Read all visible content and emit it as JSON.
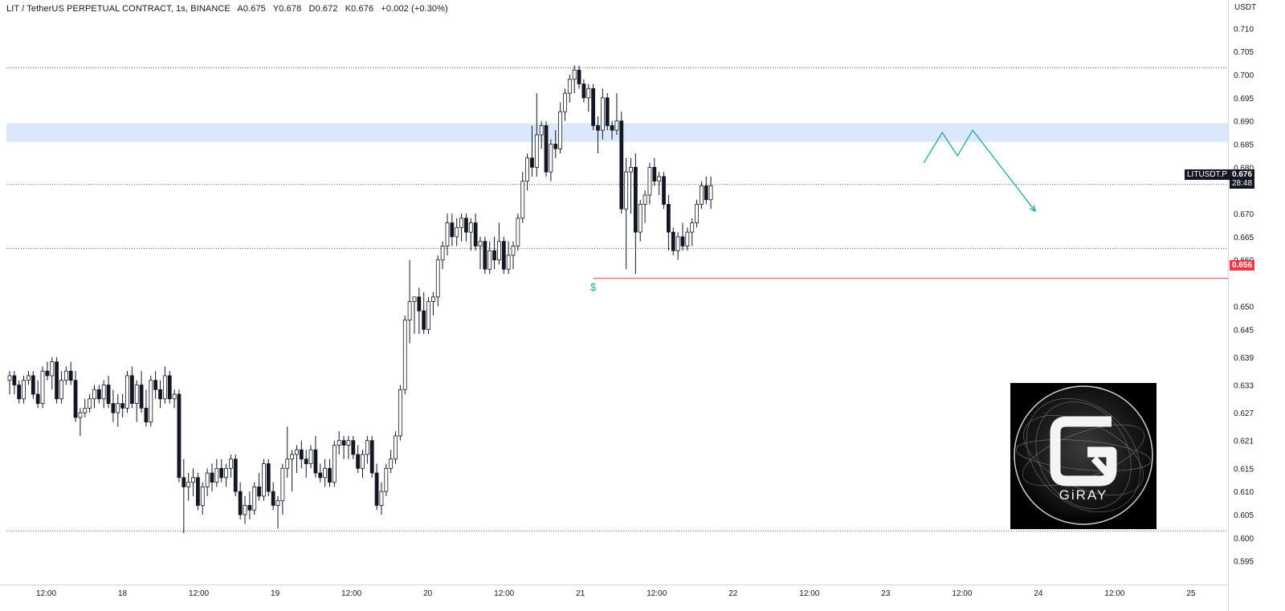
{
  "legend": {
    "symbol": "LIT / TetherUS PERPETUAL CONTRACT, 1s, BINANCE",
    "open": "A0.675",
    "high": "Y0.678",
    "low": "D0.672",
    "close": "K0.676",
    "change": "+0.002 (+0.30%)"
  },
  "price_axis_unit": "USDT",
  "current_price_tag": {
    "symbol": "LITUSDT.P",
    "price": "0.676",
    "countdown": "28:48"
  },
  "support_price_tag": "0.656",
  "annotation": "$",
  "logo_text": "GiRAY",
  "colors": {
    "candle_up_fill": "#ffffff",
    "candle_down_fill": "#131722",
    "candle_outline": "#131722",
    "zone": "#dbe8fb",
    "support_line": "#f23645",
    "projection": "#26a69a",
    "annotation": "#22ab94"
  },
  "chart_data": {
    "type": "candlestick",
    "title": "",
    "x_axis": {
      "labels": [
        "12:00",
        "18",
        "12:00",
        "19",
        "12:00",
        "20",
        "12:00",
        "21",
        "12:00",
        "22",
        "12:00",
        "23",
        "12:00",
        "24",
        "12:00",
        "25"
      ],
      "range_days": [
        17.25,
        25.3
      ]
    },
    "y_axis": {
      "unit": "USDT",
      "labels": [
        "0.710",
        "0.705",
        "0.700",
        "0.695",
        "0.690",
        "0.685",
        "0.680",
        "0.676",
        "0.670",
        "0.665",
        "0.660",
        "0.656",
        "0.650",
        "0.645",
        "0.639",
        "0.633",
        "0.627",
        "0.621",
        "0.615",
        "0.610",
        "0.605",
        "0.600",
        "0.595"
      ],
      "range": [
        0.592,
        0.713
      ]
    },
    "zone": {
      "from": 0.6855,
      "to": 0.6895
    },
    "dotted_levels": [
      0.7015,
      0.6763,
      0.6625,
      0.6015
    ],
    "support_level": 0.656,
    "projection_path": [
      {
        "day": 23.25,
        "price": 0.681
      },
      {
        "day": 23.37,
        "price": 0.6875
      },
      {
        "day": 23.47,
        "price": 0.6825
      },
      {
        "day": 23.57,
        "price": 0.688
      },
      {
        "day": 23.98,
        "price": 0.6705
      }
    ],
    "candles": [
      {
        "o": 0.634,
        "h": 0.636,
        "l": 0.631,
        "c": 0.635
      },
      {
        "o": 0.635,
        "h": 0.636,
        "l": 0.631,
        "c": 0.633
      },
      {
        "o": 0.633,
        "h": 0.634,
        "l": 0.629,
        "c": 0.63
      },
      {
        "o": 0.63,
        "h": 0.635,
        "l": 0.629,
        "c": 0.634
      },
      {
        "o": 0.634,
        "h": 0.636,
        "l": 0.633,
        "c": 0.635
      },
      {
        "o": 0.635,
        "h": 0.636,
        "l": 0.63,
        "c": 0.631
      },
      {
        "o": 0.631,
        "h": 0.634,
        "l": 0.628,
        "c": 0.629
      },
      {
        "o": 0.629,
        "h": 0.637,
        "l": 0.628,
        "c": 0.636
      },
      {
        "o": 0.636,
        "h": 0.638,
        "l": 0.634,
        "c": 0.635
      },
      {
        "o": 0.635,
        "h": 0.639,
        "l": 0.632,
        "c": 0.638
      },
      {
        "o": 0.638,
        "h": 0.639,
        "l": 0.629,
        "c": 0.63
      },
      {
        "o": 0.63,
        "h": 0.636,
        "l": 0.629,
        "c": 0.634
      },
      {
        "o": 0.634,
        "h": 0.637,
        "l": 0.633,
        "c": 0.636
      },
      {
        "o": 0.636,
        "h": 0.638,
        "l": 0.633,
        "c": 0.634
      },
      {
        "o": 0.634,
        "h": 0.636,
        "l": 0.625,
        "c": 0.626
      },
      {
        "o": 0.626,
        "h": 0.628,
        "l": 0.622,
        "c": 0.627
      },
      {
        "o": 0.627,
        "h": 0.63,
        "l": 0.626,
        "c": 0.628
      },
      {
        "o": 0.628,
        "h": 0.631,
        "l": 0.627,
        "c": 0.63
      },
      {
        "o": 0.63,
        "h": 0.633,
        "l": 0.628,
        "c": 0.632
      },
      {
        "o": 0.632,
        "h": 0.633,
        "l": 0.629,
        "c": 0.63
      },
      {
        "o": 0.63,
        "h": 0.634,
        "l": 0.628,
        "c": 0.633
      },
      {
        "o": 0.633,
        "h": 0.635,
        "l": 0.628,
        "c": 0.629
      },
      {
        "o": 0.629,
        "h": 0.632,
        "l": 0.625,
        "c": 0.627
      },
      {
        "o": 0.627,
        "h": 0.631,
        "l": 0.624,
        "c": 0.629
      },
      {
        "o": 0.629,
        "h": 0.631,
        "l": 0.626,
        "c": 0.628
      },
      {
        "o": 0.628,
        "h": 0.636,
        "l": 0.627,
        "c": 0.635
      },
      {
        "o": 0.635,
        "h": 0.637,
        "l": 0.628,
        "c": 0.629
      },
      {
        "o": 0.629,
        "h": 0.634,
        "l": 0.625,
        "c": 0.633
      },
      {
        "o": 0.633,
        "h": 0.636,
        "l": 0.627,
        "c": 0.628
      },
      {
        "o": 0.628,
        "h": 0.632,
        "l": 0.624,
        "c": 0.625
      },
      {
        "o": 0.625,
        "h": 0.635,
        "l": 0.624,
        "c": 0.634
      },
      {
        "o": 0.634,
        "h": 0.636,
        "l": 0.63,
        "c": 0.632
      },
      {
        "o": 0.632,
        "h": 0.634,
        "l": 0.628,
        "c": 0.63
      },
      {
        "o": 0.63,
        "h": 0.637,
        "l": 0.629,
        "c": 0.635
      },
      {
        "o": 0.635,
        "h": 0.636,
        "l": 0.629,
        "c": 0.63
      },
      {
        "o": 0.63,
        "h": 0.632,
        "l": 0.628,
        "c": 0.631
      },
      {
        "o": 0.631,
        "h": 0.632,
        "l": 0.612,
        "c": 0.613
      },
      {
        "o": 0.613,
        "h": 0.617,
        "l": 0.601,
        "c": 0.611
      },
      {
        "o": 0.611,
        "h": 0.614,
        "l": 0.608,
        "c": 0.612
      },
      {
        "o": 0.612,
        "h": 0.615,
        "l": 0.609,
        "c": 0.613
      },
      {
        "o": 0.613,
        "h": 0.614,
        "l": 0.606,
        "c": 0.607
      },
      {
        "o": 0.607,
        "h": 0.612,
        "l": 0.605,
        "c": 0.611
      },
      {
        "o": 0.611,
        "h": 0.615,
        "l": 0.609,
        "c": 0.614
      },
      {
        "o": 0.614,
        "h": 0.616,
        "l": 0.61,
        "c": 0.612
      },
      {
        "o": 0.612,
        "h": 0.617,
        "l": 0.611,
        "c": 0.615
      },
      {
        "o": 0.615,
        "h": 0.617,
        "l": 0.612,
        "c": 0.613
      },
      {
        "o": 0.613,
        "h": 0.616,
        "l": 0.611,
        "c": 0.615
      },
      {
        "o": 0.615,
        "h": 0.618,
        "l": 0.613,
        "c": 0.617
      },
      {
        "o": 0.617,
        "h": 0.618,
        "l": 0.609,
        "c": 0.61
      },
      {
        "o": 0.61,
        "h": 0.612,
        "l": 0.604,
        "c": 0.605
      },
      {
        "o": 0.605,
        "h": 0.609,
        "l": 0.603,
        "c": 0.607
      },
      {
        "o": 0.607,
        "h": 0.61,
        "l": 0.604,
        "c": 0.606
      },
      {
        "o": 0.606,
        "h": 0.612,
        "l": 0.605,
        "c": 0.611
      },
      {
        "o": 0.611,
        "h": 0.614,
        "l": 0.608,
        "c": 0.609
      },
      {
        "o": 0.609,
        "h": 0.617,
        "l": 0.608,
        "c": 0.616
      },
      {
        "o": 0.616,
        "h": 0.617,
        "l": 0.609,
        "c": 0.61
      },
      {
        "o": 0.61,
        "h": 0.612,
        "l": 0.606,
        "c": 0.607
      },
      {
        "o": 0.607,
        "h": 0.609,
        "l": 0.602,
        "c": 0.608
      },
      {
        "o": 0.608,
        "h": 0.616,
        "l": 0.605,
        "c": 0.615
      },
      {
        "o": 0.615,
        "h": 0.624,
        "l": 0.613,
        "c": 0.617
      },
      {
        "o": 0.617,
        "h": 0.619,
        "l": 0.61,
        "c": 0.618
      },
      {
        "o": 0.618,
        "h": 0.62,
        "l": 0.614,
        "c": 0.619
      },
      {
        "o": 0.619,
        "h": 0.621,
        "l": 0.615,
        "c": 0.617
      },
      {
        "o": 0.617,
        "h": 0.619,
        "l": 0.613,
        "c": 0.616
      },
      {
        "o": 0.616,
        "h": 0.62,
        "l": 0.615,
        "c": 0.619
      },
      {
        "o": 0.619,
        "h": 0.622,
        "l": 0.613,
        "c": 0.614
      },
      {
        "o": 0.614,
        "h": 0.616,
        "l": 0.612,
        "c": 0.613
      },
      {
        "o": 0.613,
        "h": 0.617,
        "l": 0.611,
        "c": 0.615
      },
      {
        "o": 0.615,
        "h": 0.617,
        "l": 0.611,
        "c": 0.612
      },
      {
        "o": 0.612,
        "h": 0.621,
        "l": 0.611,
        "c": 0.62
      },
      {
        "o": 0.62,
        "h": 0.623,
        "l": 0.618,
        "c": 0.621
      },
      {
        "o": 0.621,
        "h": 0.622,
        "l": 0.617,
        "c": 0.62
      },
      {
        "o": 0.62,
        "h": 0.622,
        "l": 0.617,
        "c": 0.621
      },
      {
        "o": 0.621,
        "h": 0.622,
        "l": 0.617,
        "c": 0.618
      },
      {
        "o": 0.618,
        "h": 0.62,
        "l": 0.614,
        "c": 0.615
      },
      {
        "o": 0.615,
        "h": 0.619,
        "l": 0.613,
        "c": 0.618
      },
      {
        "o": 0.618,
        "h": 0.622,
        "l": 0.616,
        "c": 0.621
      },
      {
        "o": 0.621,
        "h": 0.622,
        "l": 0.613,
        "c": 0.614
      },
      {
        "o": 0.614,
        "h": 0.616,
        "l": 0.606,
        "c": 0.607
      },
      {
        "o": 0.607,
        "h": 0.612,
        "l": 0.605,
        "c": 0.61
      },
      {
        "o": 0.61,
        "h": 0.616,
        "l": 0.609,
        "c": 0.615
      },
      {
        "o": 0.615,
        "h": 0.619,
        "l": 0.614,
        "c": 0.617
      },
      {
        "o": 0.617,
        "h": 0.623,
        "l": 0.616,
        "c": 0.622
      },
      {
        "o": 0.622,
        "h": 0.633,
        "l": 0.621,
        "c": 0.632
      },
      {
        "o": 0.632,
        "h": 0.648,
        "l": 0.631,
        "c": 0.647
      },
      {
        "o": 0.647,
        "h": 0.66,
        "l": 0.642,
        "c": 0.651
      },
      {
        "o": 0.651,
        "h": 0.652,
        "l": 0.644,
        "c": 0.652
      },
      {
        "o": 0.652,
        "h": 0.654,
        "l": 0.644,
        "c": 0.649
      },
      {
        "o": 0.649,
        "h": 0.653,
        "l": 0.644,
        "c": 0.645
      },
      {
        "o": 0.645,
        "h": 0.652,
        "l": 0.644,
        "c": 0.651
      },
      {
        "o": 0.651,
        "h": 0.653,
        "l": 0.648,
        "c": 0.652
      },
      {
        "o": 0.652,
        "h": 0.661,
        "l": 0.65,
        "c": 0.66
      },
      {
        "o": 0.66,
        "h": 0.664,
        "l": 0.658,
        "c": 0.663
      },
      {
        "o": 0.663,
        "h": 0.67,
        "l": 0.661,
        "c": 0.668
      },
      {
        "o": 0.668,
        "h": 0.67,
        "l": 0.663,
        "c": 0.665
      },
      {
        "o": 0.665,
        "h": 0.669,
        "l": 0.663,
        "c": 0.667
      },
      {
        "o": 0.667,
        "h": 0.67,
        "l": 0.664,
        "c": 0.669
      },
      {
        "o": 0.669,
        "h": 0.67,
        "l": 0.664,
        "c": 0.666
      },
      {
        "o": 0.666,
        "h": 0.669,
        "l": 0.662,
        "c": 0.668
      },
      {
        "o": 0.668,
        "h": 0.67,
        "l": 0.662,
        "c": 0.663
      },
      {
        "o": 0.663,
        "h": 0.665,
        "l": 0.658,
        "c": 0.664
      },
      {
        "o": 0.664,
        "h": 0.665,
        "l": 0.657,
        "c": 0.658
      },
      {
        "o": 0.658,
        "h": 0.664,
        "l": 0.657,
        "c": 0.662
      },
      {
        "o": 0.662,
        "h": 0.665,
        "l": 0.658,
        "c": 0.66
      },
      {
        "o": 0.66,
        "h": 0.668,
        "l": 0.659,
        "c": 0.664
      },
      {
        "o": 0.664,
        "h": 0.665,
        "l": 0.657,
        "c": 0.658
      },
      {
        "o": 0.658,
        "h": 0.664,
        "l": 0.657,
        "c": 0.661
      },
      {
        "o": 0.661,
        "h": 0.664,
        "l": 0.658,
        "c": 0.663
      },
      {
        "o": 0.663,
        "h": 0.67,
        "l": 0.662,
        "c": 0.669
      },
      {
        "o": 0.669,
        "h": 0.679,
        "l": 0.668,
        "c": 0.677
      },
      {
        "o": 0.677,
        "h": 0.683,
        "l": 0.675,
        "c": 0.682
      },
      {
        "o": 0.682,
        "h": 0.689,
        "l": 0.678,
        "c": 0.68
      },
      {
        "o": 0.68,
        "h": 0.696,
        "l": 0.678,
        "c": 0.687
      },
      {
        "o": 0.687,
        "h": 0.69,
        "l": 0.684,
        "c": 0.689
      },
      {
        "o": 0.689,
        "h": 0.69,
        "l": 0.678,
        "c": 0.679
      },
      {
        "o": 0.679,
        "h": 0.686,
        "l": 0.677,
        "c": 0.685
      },
      {
        "o": 0.685,
        "h": 0.688,
        "l": 0.682,
        "c": 0.684
      },
      {
        "o": 0.684,
        "h": 0.694,
        "l": 0.683,
        "c": 0.692
      },
      {
        "o": 0.692,
        "h": 0.697,
        "l": 0.69,
        "c": 0.696
      },
      {
        "o": 0.696,
        "h": 0.7,
        "l": 0.694,
        "c": 0.699
      },
      {
        "o": 0.699,
        "h": 0.702,
        "l": 0.696,
        "c": 0.701
      },
      {
        "o": 0.701,
        "h": 0.702,
        "l": 0.697,
        "c": 0.698
      },
      {
        "o": 0.698,
        "h": 0.699,
        "l": 0.694,
        "c": 0.695
      },
      {
        "o": 0.695,
        "h": 0.698,
        "l": 0.692,
        "c": 0.697
      },
      {
        "o": 0.697,
        "h": 0.698,
        "l": 0.688,
        "c": 0.689
      },
      {
        "o": 0.689,
        "h": 0.691,
        "l": 0.683,
        "c": 0.688
      },
      {
        "o": 0.688,
        "h": 0.697,
        "l": 0.686,
        "c": 0.695
      },
      {
        "o": 0.695,
        "h": 0.696,
        "l": 0.688,
        "c": 0.689
      },
      {
        "o": 0.689,
        "h": 0.69,
        "l": 0.686,
        "c": 0.688
      },
      {
        "o": 0.688,
        "h": 0.696,
        "l": 0.687,
        "c": 0.69
      },
      {
        "o": 0.69,
        "h": 0.692,
        "l": 0.67,
        "c": 0.671
      },
      {
        "o": 0.671,
        "h": 0.682,
        "l": 0.658,
        "c": 0.679
      },
      {
        "o": 0.679,
        "h": 0.682,
        "l": 0.67,
        "c": 0.68
      },
      {
        "o": 0.68,
        "h": 0.683,
        "l": 0.657,
        "c": 0.666
      },
      {
        "o": 0.666,
        "h": 0.673,
        "l": 0.664,
        "c": 0.672
      },
      {
        "o": 0.672,
        "h": 0.675,
        "l": 0.668,
        "c": 0.674
      },
      {
        "o": 0.674,
        "h": 0.681,
        "l": 0.672,
        "c": 0.68
      },
      {
        "o": 0.68,
        "h": 0.682,
        "l": 0.676,
        "c": 0.677
      },
      {
        "o": 0.677,
        "h": 0.679,
        "l": 0.674,
        "c": 0.678
      },
      {
        "o": 0.678,
        "h": 0.679,
        "l": 0.671,
        "c": 0.672
      },
      {
        "o": 0.672,
        "h": 0.674,
        "l": 0.662,
        "c": 0.666
      },
      {
        "o": 0.666,
        "h": 0.667,
        "l": 0.661,
        "c": 0.662
      },
      {
        "o": 0.662,
        "h": 0.666,
        "l": 0.66,
        "c": 0.665
      },
      {
        "o": 0.665,
        "h": 0.668,
        "l": 0.662,
        "c": 0.663
      },
      {
        "o": 0.663,
        "h": 0.667,
        "l": 0.662,
        "c": 0.666
      },
      {
        "o": 0.666,
        "h": 0.669,
        "l": 0.663,
        "c": 0.668
      },
      {
        "o": 0.668,
        "h": 0.673,
        "l": 0.667,
        "c": 0.672
      },
      {
        "o": 0.672,
        "h": 0.677,
        "l": 0.671,
        "c": 0.676
      },
      {
        "o": 0.676,
        "h": 0.678,
        "l": 0.672,
        "c": 0.673
      },
      {
        "o": 0.673,
        "h": 0.678,
        "l": 0.671,
        "c": 0.676
      }
    ]
  }
}
